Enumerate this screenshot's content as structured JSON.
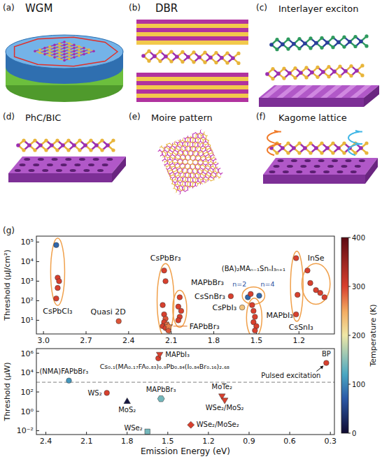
{
  "panels": [
    {
      "label": "(a)",
      "title": "WGM"
    },
    {
      "label": "(b)",
      "title": "DBR"
    },
    {
      "label": "(c)",
      "title": "Interlayer exciton"
    },
    {
      "label": "(d)",
      "title": "PhC/BIC"
    },
    {
      "label": "(e)",
      "title": "Moire pattern"
    },
    {
      "label": "(f)",
      "title": "Kagome lattice"
    }
  ],
  "figure_label": "(g)",
  "colorbar": {
    "label": "Temperature (K)",
    "range": [
      0,
      400
    ],
    "ticks": [
      0,
      100,
      200,
      300,
      400
    ]
  },
  "chart_data": [
    {
      "type": "scatter",
      "y_label": "Threshold (μJ/cm²)",
      "log": "y",
      "xlim": [
        3.05,
        0.95
      ],
      "xticks": [
        {
          "value": 3,
          "label": "3.0"
        },
        2.7,
        2.4,
        2.1,
        1.8,
        1.5,
        1.2
      ],
      "ylim": [
        2,
        200000
      ],
      "yticks": [
        {
          "value": 10,
          "label": "10¹"
        },
        {
          "value": 100,
          "label": "10²"
        },
        {
          "value": 1000,
          "label": "10³"
        },
        {
          "value": 10000,
          "label": "10⁴"
        },
        {
          "value": 100000,
          "label": "10⁵"
        }
      ],
      "series": [
        {
          "name": "CsPbCl₃",
          "marker": "circle",
          "x": [
            2.91,
            2.9,
            2.89,
            2.9,
            2.91
          ],
          "values": [
            70000,
            1500,
            1000,
            450,
            130
          ],
          "temperature": [
            80,
            300,
            300,
            300,
            300
          ]
        },
        {
          "name": "Quasi 2D",
          "marker": "circle",
          "x": [
            2.47
          ],
          "values": [
            9
          ],
          "temperature": [
            290
          ]
        },
        {
          "name": "CsPbBr₃",
          "marker": "circle",
          "x": [
            2.15,
            2.14,
            2.16,
            2.15,
            2.14,
            2.15,
            2.13,
            2.16,
            2.14,
            2.12
          ],
          "values": [
            3500,
            1000,
            60,
            20,
            12,
            8,
            6,
            5,
            4,
            3
          ],
          "temperature": [
            300,
            300,
            300,
            300,
            290,
            300,
            280,
            300,
            300,
            290
          ]
        },
        {
          "name": "MAPbBr₃",
          "marker": "circle",
          "x": [
            2.04,
            2.05,
            2.03,
            2.04,
            2.05
          ],
          "values": [
            150,
            50,
            30,
            15,
            10
          ],
          "temperature": [
            300,
            300,
            300,
            300,
            300
          ]
        },
        {
          "name": "FAPbBr₃",
          "marker": "star",
          "x": [
            2.12
          ],
          "values": [
            5
          ],
          "temperature": [
            270
          ]
        },
        {
          "name": "CsSnBr₃",
          "marker": "circle",
          "x": [
            1.68
          ],
          "values": [
            170
          ],
          "temperature": [
            300
          ]
        },
        {
          "name": "CsPbI₃",
          "marker": "circle",
          "x": [
            1.6
          ],
          "values": [
            45
          ],
          "temperature": [
            230
          ]
        },
        {
          "name": "(BA)₂MAₙ₋₁SnₙI₃ₙ₊₁",
          "marker": "circle",
          "x": [
            1.56,
            1.54,
            1.48
          ],
          "values": [
            150,
            220,
            180
          ],
          "temperature": [
            80,
            300,
            80
          ]
        },
        {
          "name": "MAPbI₃",
          "marker": "circle",
          "x": [
            1.53,
            1.52,
            1.51,
            1.52,
            1.5,
            1.51
          ],
          "values": [
            60,
            30,
            15,
            8,
            5,
            3
          ],
          "temperature": [
            300,
            300,
            300,
            300,
            300,
            300
          ]
        },
        {
          "name": "CsSnI₃",
          "marker": "circle",
          "x": [
            1.22,
            1.21,
            1.22
          ],
          "values": [
            15000,
            200,
            20
          ],
          "temperature": [
            300,
            300,
            300
          ]
        },
        {
          "name": "InSe",
          "marker": "circle",
          "x": [
            1.14,
            1.12,
            1.08,
            1.05,
            1.02
          ],
          "values": [
            3500,
            800,
            350,
            250,
            150
          ],
          "temperature": [
            300,
            300,
            300,
            300,
            300
          ]
        }
      ],
      "annotations": [
        {
          "text": "n=2"
        },
        {
          "text": "n=4"
        }
      ]
    },
    {
      "type": "scatter",
      "x_label": "Emission Energy (eV)",
      "y_label": "Threshold (μW)",
      "log": "y",
      "xlim": [
        2.47,
        0.27
      ],
      "xticks": [
        2.4,
        2.1,
        1.8,
        1.5,
        1.2,
        0.9,
        0.6,
        0.3
      ],
      "ylim": [
        0.004,
        3000000
      ],
      "yticks": [
        {
          "value": 0.01,
          "label": "10⁻²"
        },
        {
          "value": 1,
          "label": "10⁰"
        },
        {
          "value": 100,
          "label": "10²"
        },
        {
          "value": 10000,
          "label": "10⁴"
        },
        {
          "value": 1000000,
          "label": "10⁶"
        }
      ],
      "reference_line": {
        "value": 1000,
        "line_style": "dashed"
      },
      "series": [
        {
          "name": "(NMA)FAPbBr₃",
          "marker": "circle",
          "x": [
            2.23
          ],
          "values": [
            1500
          ],
          "temperature": [
            110
          ]
        },
        {
          "name": "WS₂",
          "marker": "circle",
          "x": [
            1.95
          ],
          "values": [
            80
          ],
          "temperature": [
            300
          ]
        },
        {
          "name": "MoS₂",
          "marker": "triangle",
          "x": [
            1.8
          ],
          "values": [
            10
          ],
          "temperature": [
            10
          ]
        },
        {
          "name": "MAPbBr₃",
          "marker": "hexagon",
          "x": [
            1.55
          ],
          "values": [
            20
          ],
          "temperature": [
            140
          ]
        },
        {
          "name": "WSe₂",
          "marker": "square",
          "x": [
            1.65
          ],
          "values": [
            0.008
          ],
          "temperature": [
            140
          ]
        },
        {
          "name": "WSe₂/MoSe₂",
          "marker": "diamond",
          "x": [
            1.33
          ],
          "values": [
            0.04
          ],
          "temperature": [
            300
          ]
        },
        {
          "name": "MoTe₂",
          "marker": "triangle-down",
          "x": [
            1.1
          ],
          "values": [
            40
          ],
          "temperature": [
            300
          ]
        },
        {
          "name": "WSe₂/MoS₂",
          "marker": "triangle-down",
          "x": [
            1.08
          ],
          "values": [
            15
          ],
          "temperature": [
            300
          ]
        },
        {
          "name": "MAPbI₃",
          "marker": "circle",
          "x": [
            1.57
          ],
          "values": [
            300000
          ],
          "temperature": [
            300
          ]
        },
        {
          "name": "Cs₀.₁(MA₀.₁₇FA₀.₈₃)₀.₉Pb₀.₈₄(I₀.₈₄Br₀.₁₆)₂.₆₈",
          "marker": "triangle-down",
          "x": [
            1.56
          ],
          "values": [
            800000
          ],
          "temperature": [
            300
          ]
        },
        {
          "name": "BP",
          "marker": "circle",
          "x": [
            0.33
          ],
          "values": [
            100000
          ],
          "temperature": [
            300
          ]
        }
      ],
      "annotations": [
        {
          "text": "Pulsed excitation"
        }
      ]
    }
  ]
}
